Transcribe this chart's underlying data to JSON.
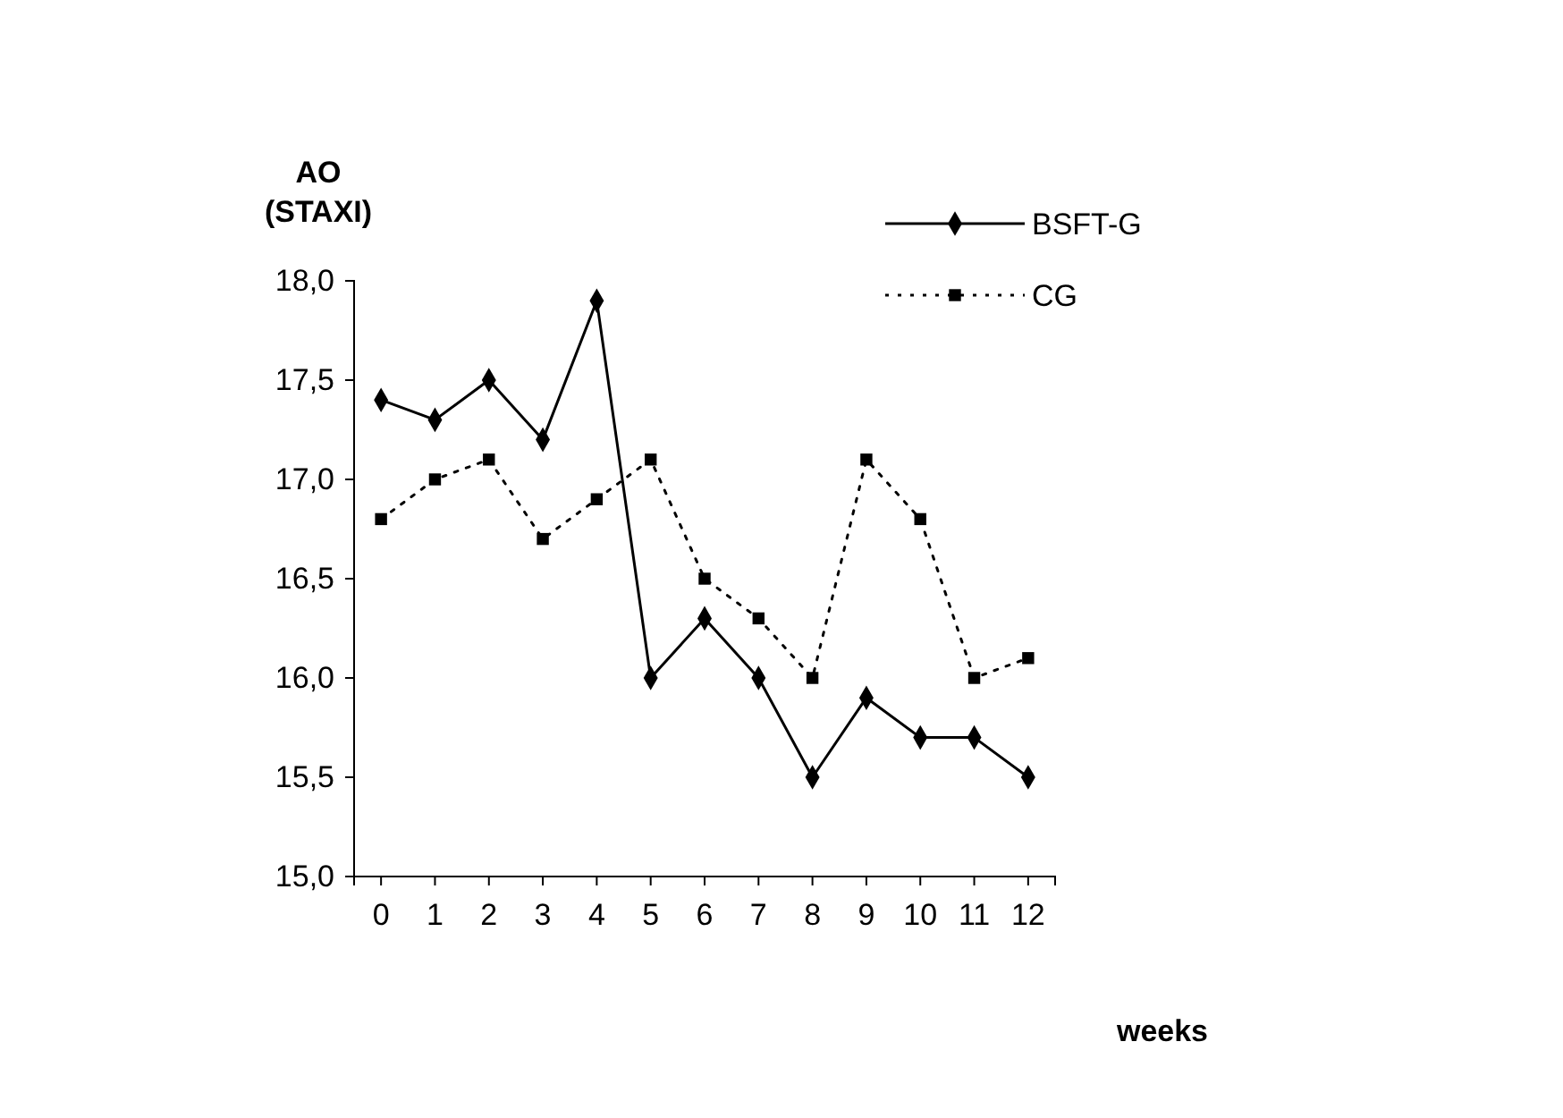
{
  "chart_data": {
    "type": "line",
    "xlabel": "weeks",
    "ylabel": "AO\n(STAXI)",
    "x": [
      0,
      1,
      2,
      3,
      4,
      5,
      6,
      7,
      8,
      9,
      10,
      11,
      12
    ],
    "series": [
      {
        "name": "BSFT-G",
        "color": "#000000",
        "marker": "diamond",
        "line_style": "solid",
        "values": [
          17.4,
          17.3,
          17.5,
          17.2,
          17.9,
          16.0,
          16.3,
          16.0,
          15.5,
          15.9,
          15.7,
          15.7,
          15.5
        ]
      },
      {
        "name": "CG",
        "color": "#000000",
        "marker": "square",
        "line_style": "dotted",
        "values": [
          16.8,
          17.0,
          17.1,
          16.7,
          16.9,
          17.1,
          16.5,
          16.3,
          16.0,
          17.1,
          16.8,
          16.0,
          16.1
        ]
      }
    ],
    "xlim": [
      -0.5,
      12.5
    ],
    "xticks": [
      0,
      1,
      2,
      3,
      4,
      5,
      6,
      7,
      8,
      9,
      10,
      11,
      12
    ],
    "ylim": [
      15.0,
      18.0
    ],
    "yticks": [
      {
        "value": 15.0,
        "label": "15,0"
      },
      {
        "value": 15.5,
        "label": "15,5"
      },
      {
        "value": 16.0,
        "label": "16,0"
      },
      {
        "value": 16.5,
        "label": "16,5"
      },
      {
        "value": 17.0,
        "label": "17,0"
      },
      {
        "value": 17.5,
        "label": "17,5"
      },
      {
        "value": 18.0,
        "label": "18,0"
      }
    ],
    "grid": false,
    "legend": "top right"
  }
}
